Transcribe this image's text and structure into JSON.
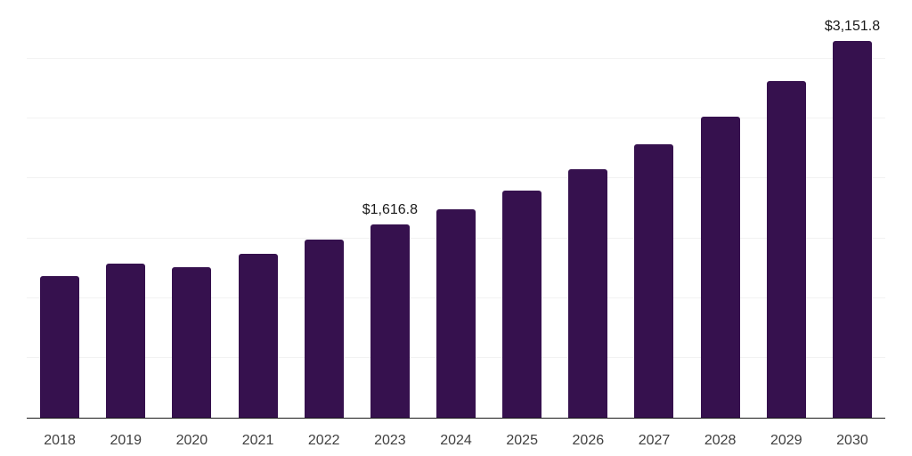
{
  "chart_data": {
    "type": "bar",
    "categories": [
      "2018",
      "2019",
      "2020",
      "2021",
      "2022",
      "2023",
      "2024",
      "2025",
      "2026",
      "2027",
      "2028",
      "2029",
      "2030"
    ],
    "values": [
      1185,
      1290,
      1260,
      1370,
      1490,
      1616.8,
      1745,
      1900,
      2075,
      2285,
      2520,
      2815,
      3151.8
    ],
    "data_labels": {
      "2023": "$1,616.8",
      "2030": "$3,151.8"
    },
    "ylim": [
      0,
      3500
    ],
    "gridline_step": 500,
    "grid": "horizontal",
    "legend": "none",
    "bar_color": "#36114E",
    "axis_line_color": "#1A1A1A",
    "gridline_color": "#F2F2F2",
    "data_label_color": "#1A1A1A",
    "tick_label_color": "#404040",
    "background_color": "#FFFFFF"
  }
}
